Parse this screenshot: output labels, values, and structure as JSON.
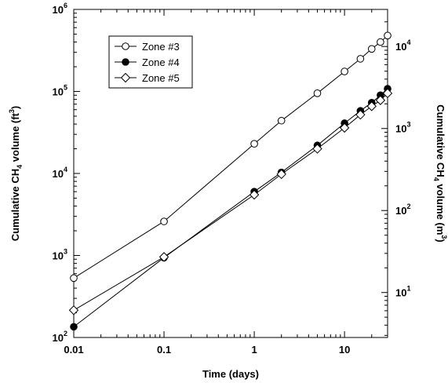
{
  "chart_data": {
    "type": "line",
    "x_scale": "log",
    "y_scale": "log",
    "xlim": [
      0.01,
      30
    ],
    "ylim": [
      100,
      1000000
    ],
    "y2lim_m3": [
      2.83,
      28317
    ],
    "xlabel": "Time (days)",
    "ylabel": {
      "prefix": "Cumulative CH",
      "sub": "4",
      "mid": " volume (ft",
      "sup": "3",
      "suffix": ")"
    },
    "y2label": {
      "prefix": "Cumulative CH",
      "sub": "4",
      "mid": " volume (m",
      "sup": "3",
      "suffix": ")"
    },
    "x_ticks": [
      {
        "value": 0.01,
        "label": "0.01"
      },
      {
        "value": 0.1,
        "label": "0.1"
      },
      {
        "value": 1,
        "label": "1"
      },
      {
        "value": 10,
        "label": "10"
      }
    ],
    "y_ticks": [
      {
        "value": 100,
        "base": "10",
        "exp": "2"
      },
      {
        "value": 1000,
        "base": "10",
        "exp": "3"
      },
      {
        "value": 10000,
        "base": "10",
        "exp": "4"
      },
      {
        "value": 100000,
        "base": "10",
        "exp": "5"
      },
      {
        "value": 1000000,
        "base": "10",
        "exp": "6"
      }
    ],
    "y2_ticks": [
      {
        "value": 10,
        "base": "10",
        "exp": "1"
      },
      {
        "value": 100,
        "base": "10",
        "exp": "2"
      },
      {
        "value": 1000,
        "base": "10",
        "exp": "3"
      },
      {
        "value": 10000,
        "base": "10",
        "exp": "4"
      }
    ],
    "grid": false,
    "legend_position": "top-left",
    "series": [
      {
        "name": "Zone #3",
        "marker": "open-circle",
        "x": [
          0.01,
          0.1,
          1,
          2,
          5,
          10,
          15,
          20,
          25,
          30
        ],
        "y": [
          530,
          2600,
          23000,
          44000,
          95000,
          175000,
          250000,
          330000,
          400000,
          480000
        ]
      },
      {
        "name": "Zone #4",
        "marker": "filled-circle",
        "x": [
          0.01,
          0.1,
          1,
          2,
          5,
          10,
          15,
          20,
          25,
          30
        ],
        "y": [
          135,
          940,
          6000,
          10300,
          22000,
          41000,
          58000,
          73000,
          90000,
          108000
        ]
      },
      {
        "name": "Zone #5",
        "marker": "open-diamond",
        "x": [
          0.01,
          0.1,
          1,
          2,
          5,
          10,
          15,
          20,
          25,
          30
        ],
        "y": [
          215,
          960,
          5500,
          9800,
          20000,
          36000,
          52000,
          66000,
          78000,
          95000
        ]
      }
    ]
  }
}
